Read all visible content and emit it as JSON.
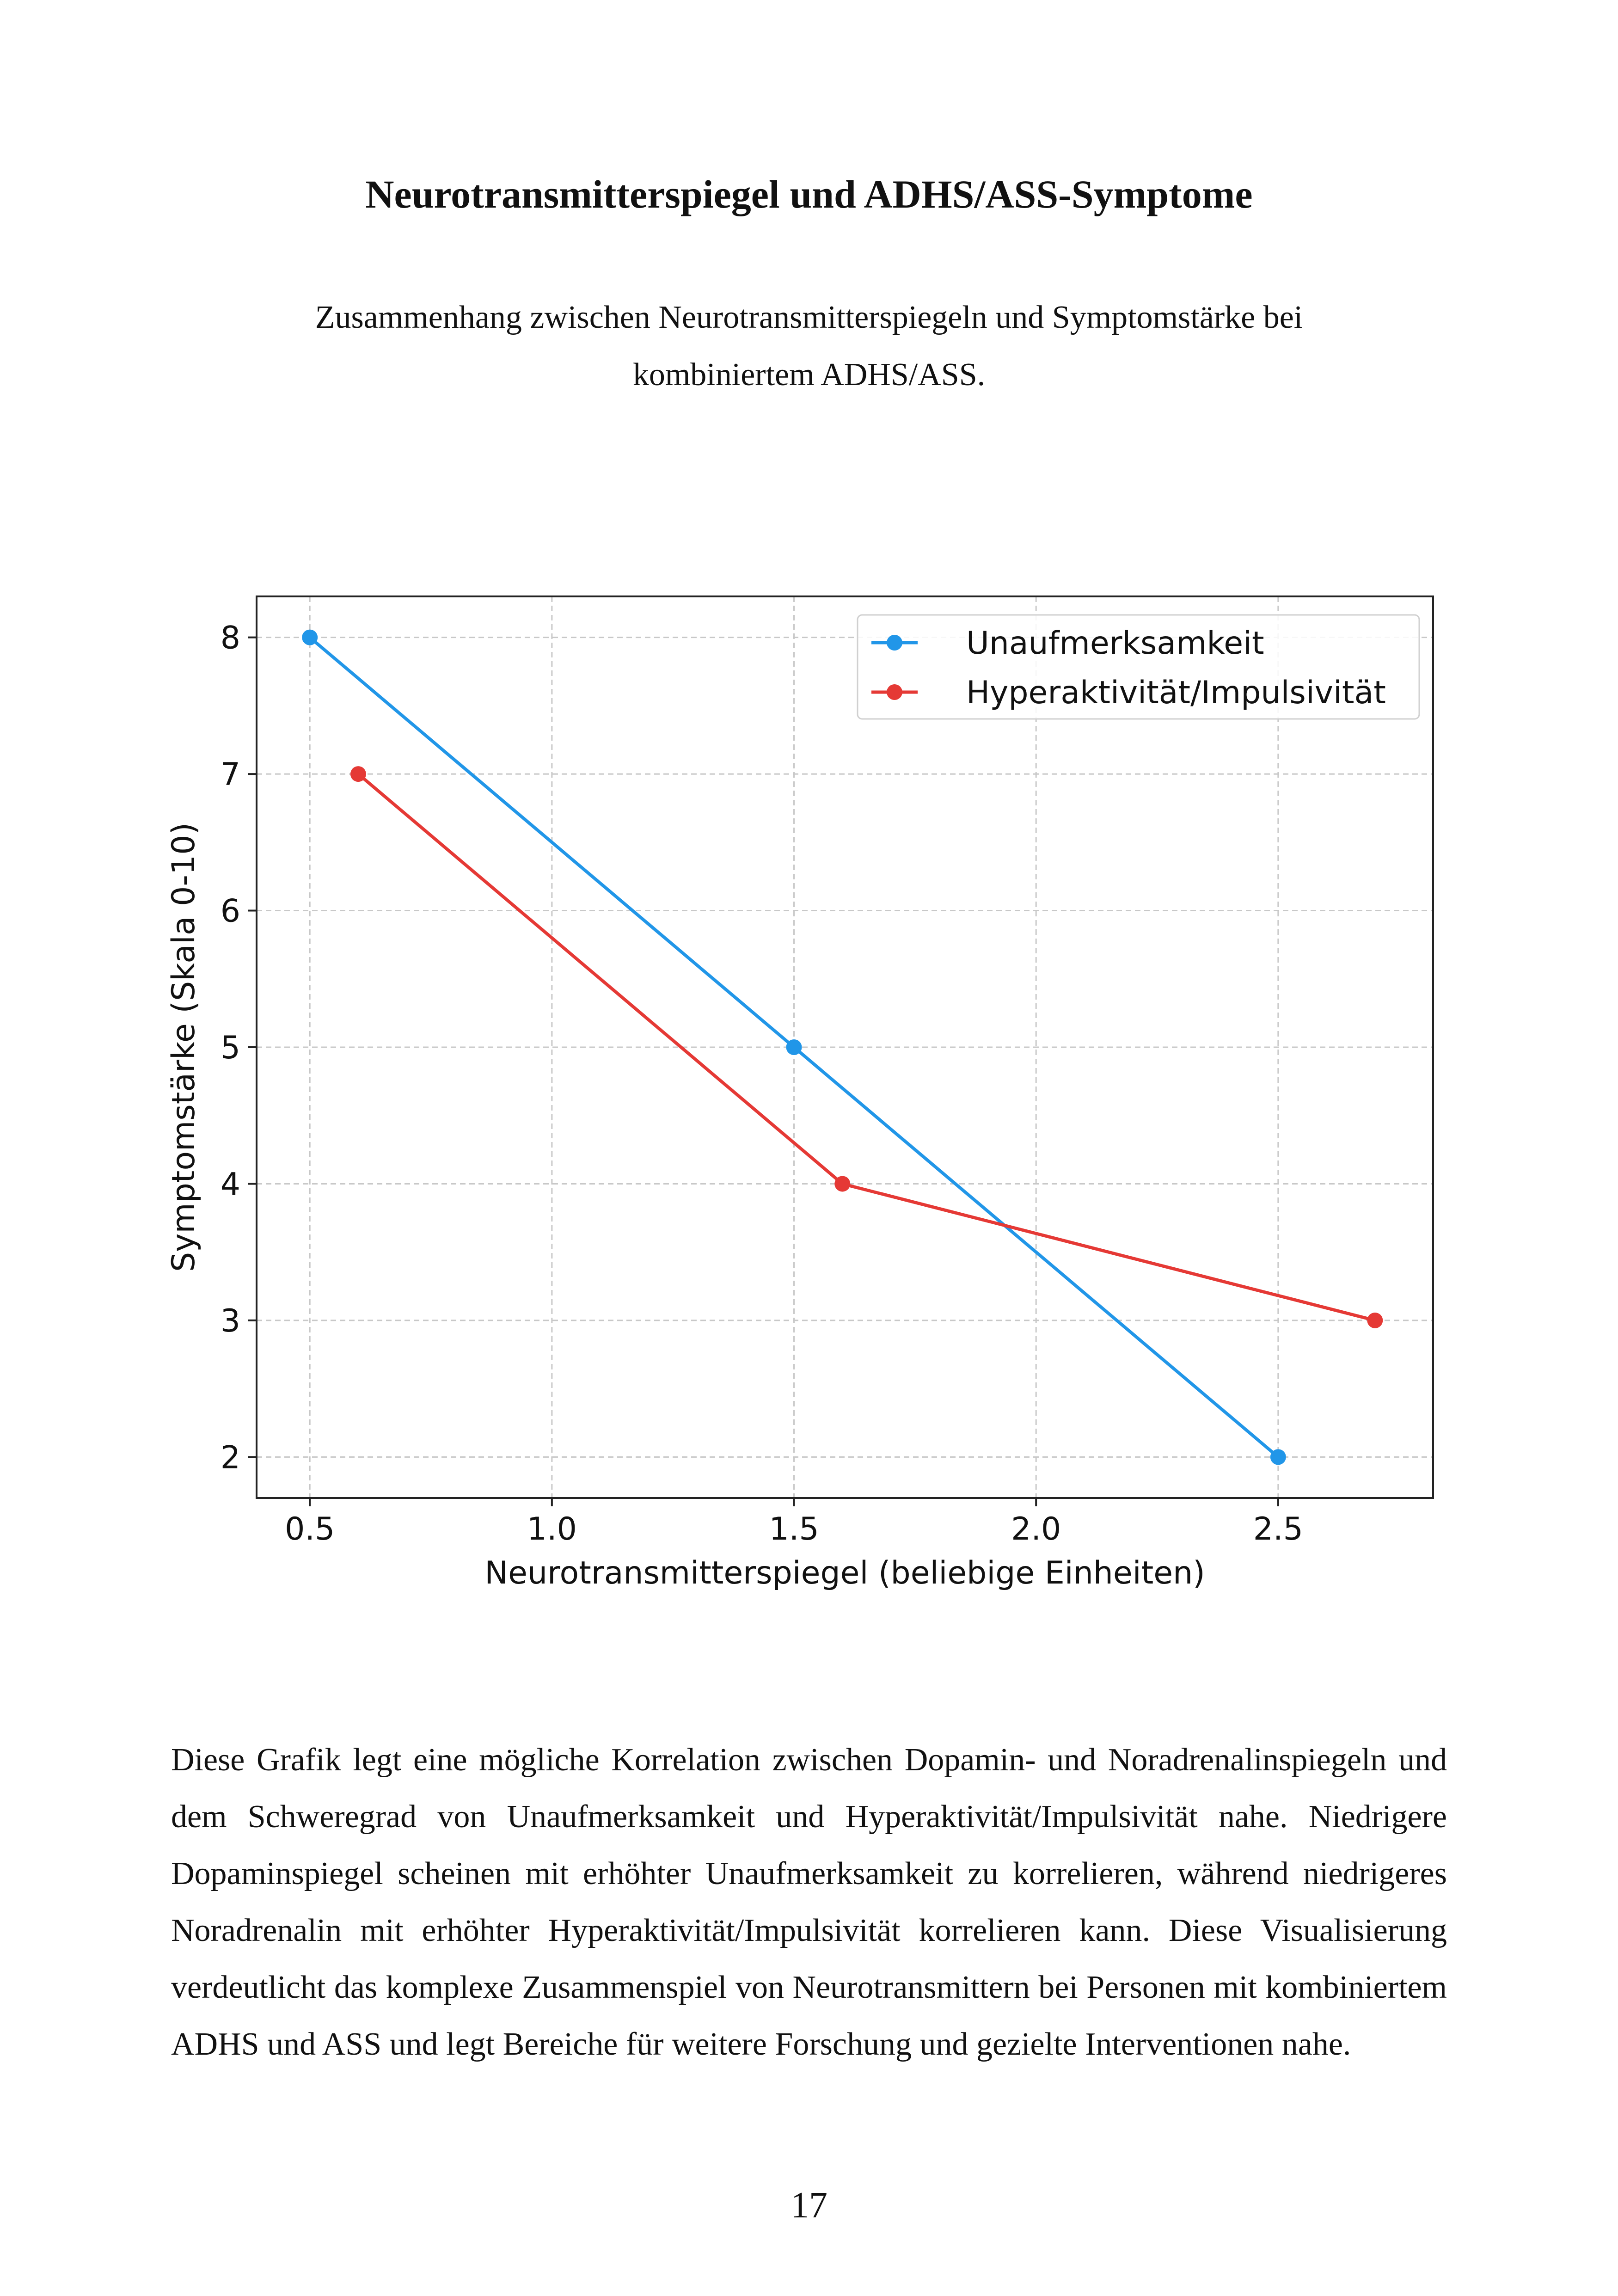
{
  "page": {
    "title": "Neurotransmitterspiegel und ADHS/ASS-Symptome",
    "caption": "Zusammenhang zwischen Neurotransmitterspiegeln und Symptomstärke bei kombiniertem ADHS/ASS.",
    "body": "Diese Grafik legt eine mögliche Korrelation zwischen Dopamin- und Noradrenalinspiegeln und dem Schweregrad von Unaufmerksamkeit und Hyperaktivität/Impulsivität nahe. Niedrigere Dopaminspiegel scheinen mit erhöhter Unaufmerksamkeit zu korrelieren, während niedrigeres Noradrenalin mit erhöhter Hyperaktivität/Impulsivität korrelieren kann. Diese Visualisierung verdeutlicht das komplexe Zusammenspiel von Neurotransmittern bei Personen mit kombiniertem ADHS und ASS und legt Bereiche für weitere Forschung und gezielte Interventionen nahe.",
    "page_number": "17"
  },
  "chart_data": {
    "type": "line",
    "title": "",
    "xlabel": "Neurotransmitterspiegel (beliebige Einheiten)",
    "ylabel": "Symptomstärke (Skala 0-10)",
    "xlim": [
      0.39,
      2.82
    ],
    "ylim": [
      1.7,
      8.3
    ],
    "xticks": [
      "0.5",
      "1.0",
      "1.5",
      "2.0",
      "2.5"
    ],
    "yticks": [
      "2",
      "3",
      "4",
      "5",
      "6",
      "7",
      "8"
    ],
    "grid": true,
    "legend_position": "top-right",
    "series": [
      {
        "name": "Unaufmerksamkeit",
        "color": "#2196e8",
        "points": [
          [
            0.5,
            8
          ],
          [
            1.5,
            5
          ],
          [
            2.5,
            2
          ]
        ]
      },
      {
        "name": "Hyperaktivität/Impulsivität",
        "color": "#e53935",
        "points": [
          [
            0.6,
            7
          ],
          [
            1.6,
            4
          ],
          [
            2.7,
            3
          ]
        ]
      }
    ]
  }
}
